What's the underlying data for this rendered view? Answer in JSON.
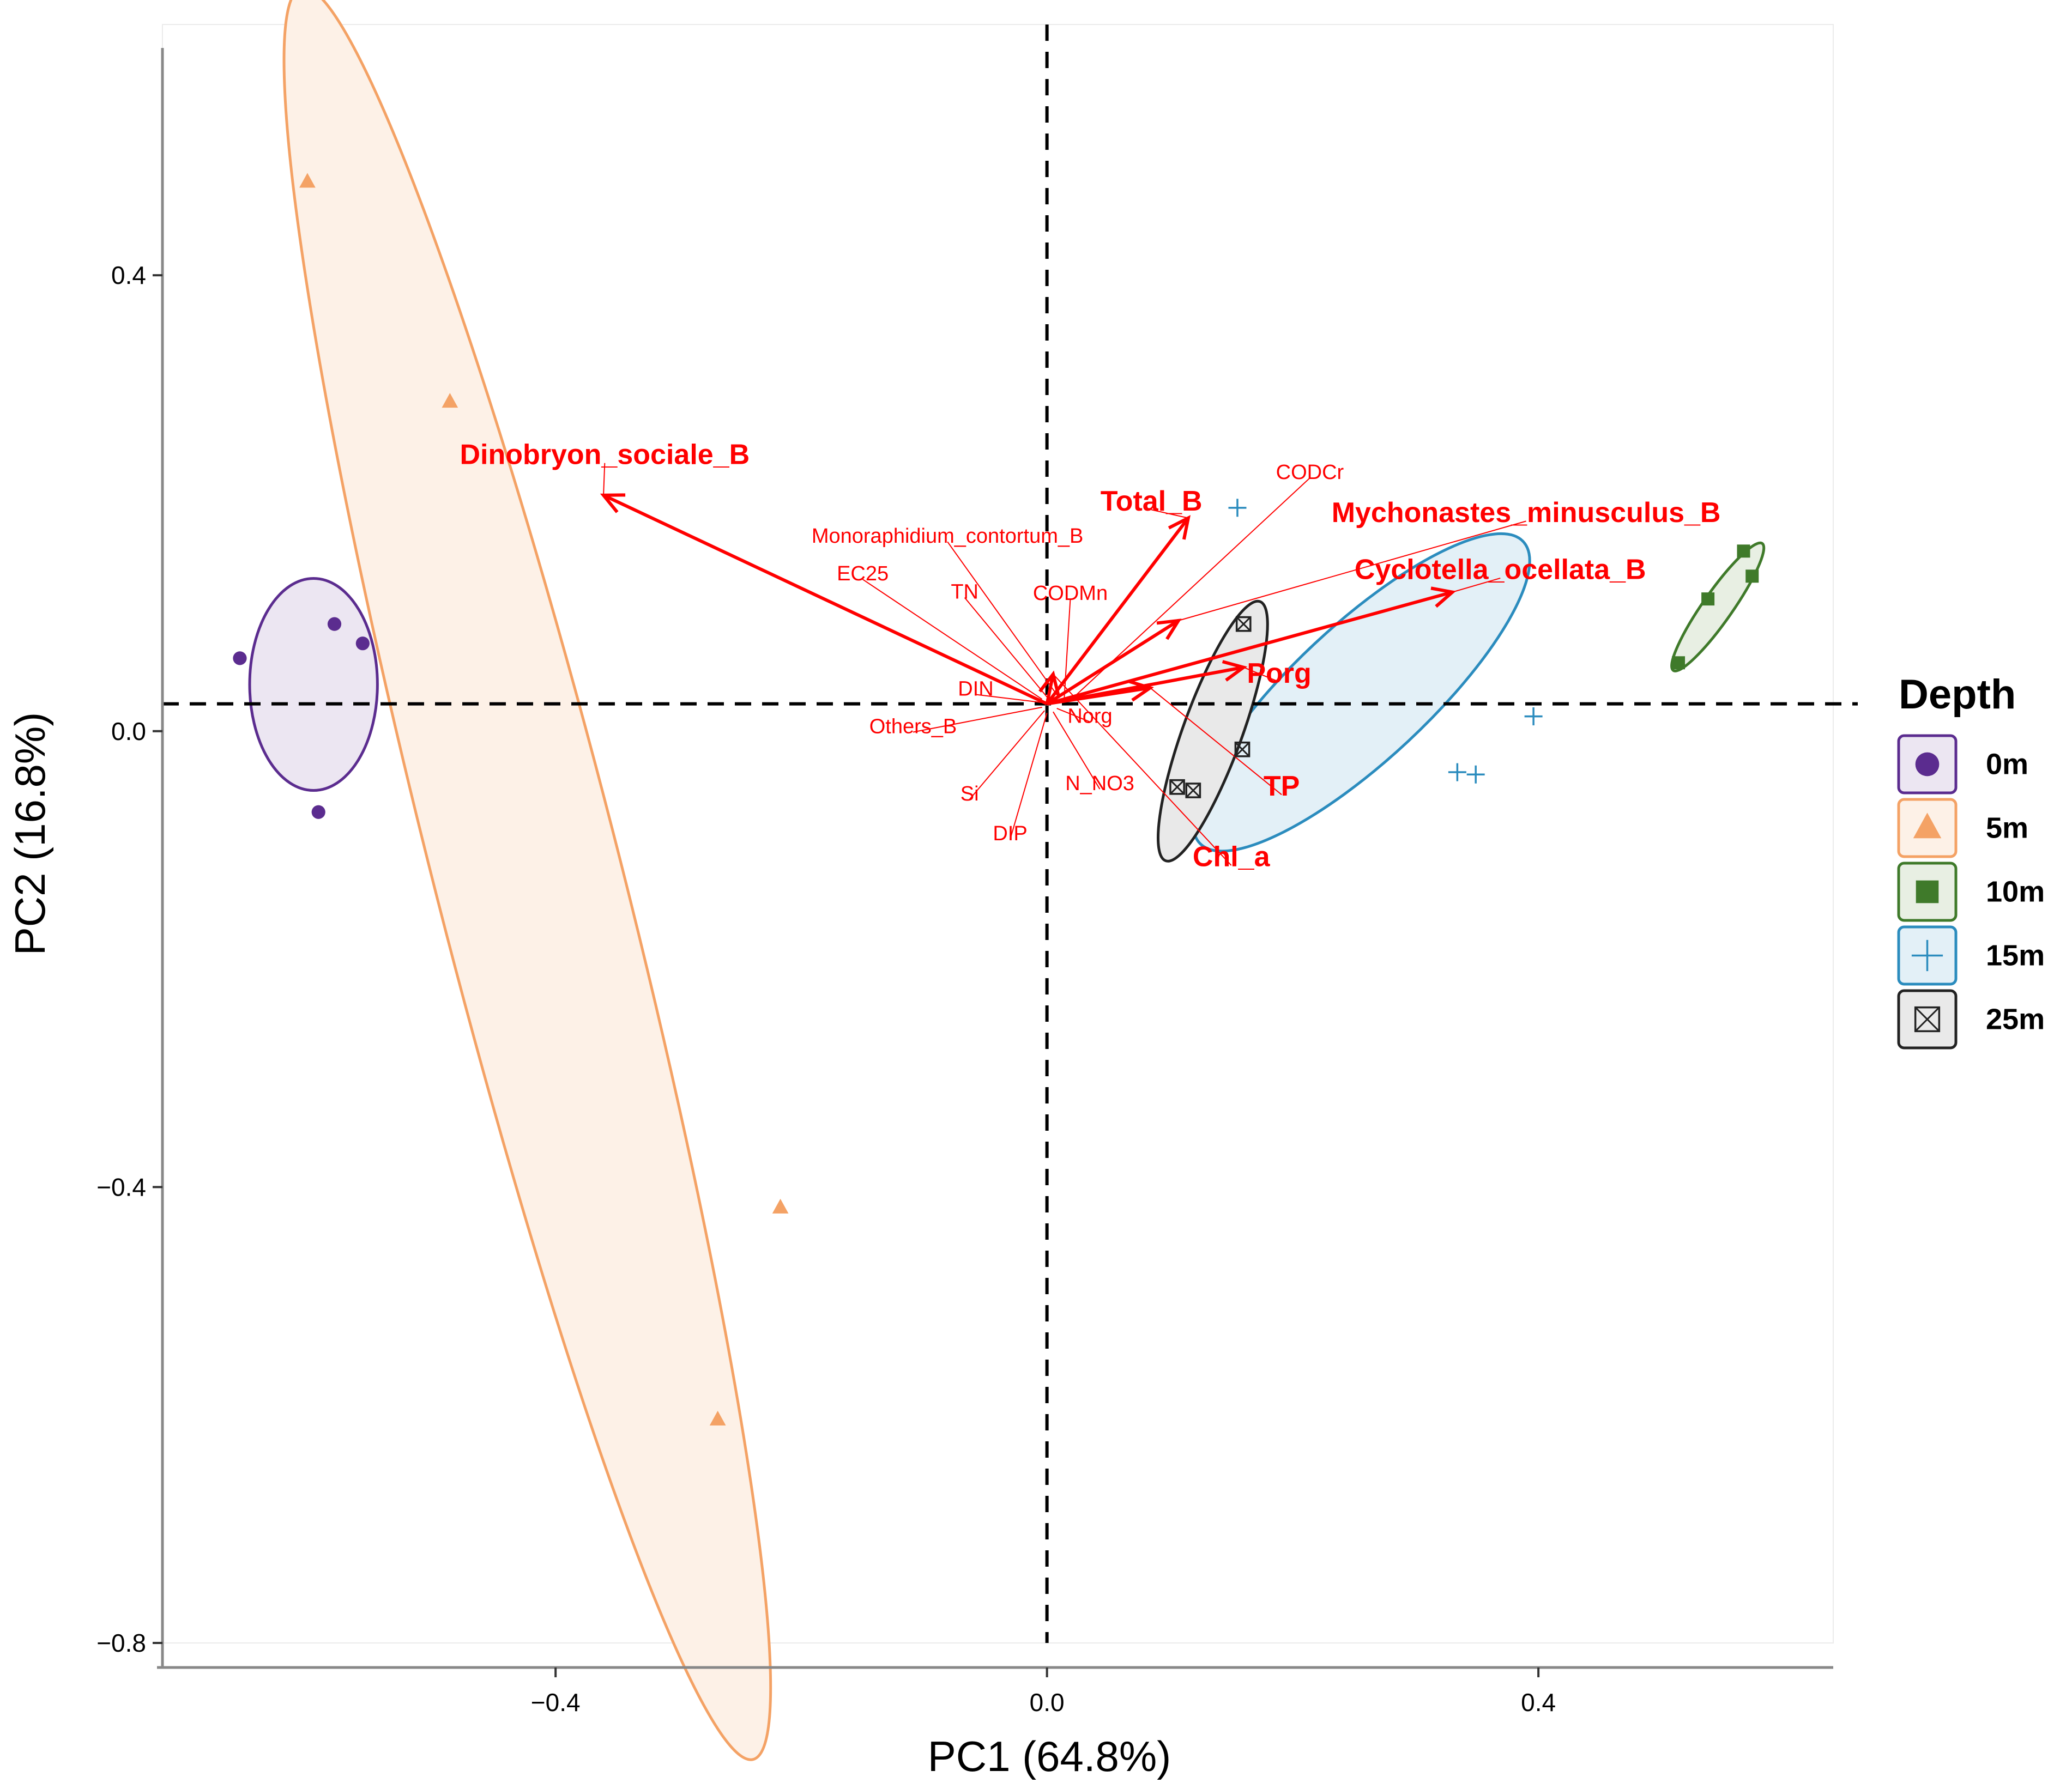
{
  "chart_data": {
    "type": "scatter",
    "subtype": "pca-biplot",
    "title": "",
    "xlabel": "PC1 (64.8%)",
    "ylabel": "PC2 (16.8%)",
    "xlim": [
      -0.72,
      0.64
    ],
    "ylim": [
      -0.8,
      0.62
    ],
    "x_ticks": [
      -0.4,
      0.0,
      0.4
    ],
    "y_ticks": [
      0.4,
      0.0,
      -0.4,
      -0.8
    ],
    "x_tick_labels": [
      "−0.4",
      "0.0",
      "0.4"
    ],
    "y_tick_labels": [
      "0.4",
      "0.0",
      "−0.4",
      "−0.8"
    ],
    "reference_lines": {
      "vertical_x": 0.0,
      "horizontal_y": 0.024,
      "style": "dashed"
    },
    "grid": false,
    "legend": {
      "title": "Depth",
      "position": "right",
      "entries": [
        {
          "label": "0m",
          "shape": "circle",
          "color": "#5b2c8f"
        },
        {
          "label": "5m",
          "shape": "triangle",
          "color": "#f4a265"
        },
        {
          "label": "10m",
          "shape": "square",
          "color": "#3f7a2a"
        },
        {
          "label": "15m",
          "shape": "plus",
          "color": "#2b8cbe"
        },
        {
          "label": "25m",
          "shape": "boxed-x",
          "color": "#222222"
        }
      ]
    },
    "series": [
      {
        "name": "0m",
        "shape": "circle",
        "color": "#5b2c8f",
        "fill": "#ece6f2",
        "points": [
          [
            -0.657,
            0.064
          ],
          [
            -0.58,
            0.094
          ],
          [
            -0.557,
            0.077
          ],
          [
            -0.593,
            -0.071
          ]
        ],
        "ellipse": {
          "cx": -0.597,
          "cy": 0.041,
          "rx": 0.052,
          "ry": 0.093,
          "angle_deg": 0
        }
      },
      {
        "name": "5m",
        "shape": "triangle",
        "color": "#f4a265",
        "fill": "#fdf1e7",
        "points": [
          [
            -0.602,
            0.482
          ],
          [
            -0.486,
            0.289
          ],
          [
            -0.217,
            -0.418
          ],
          [
            -0.268,
            -0.604
          ]
        ],
        "ellipse": {
          "cx": -0.423,
          "cy": -0.125,
          "rx": 0.076,
          "ry": 0.802,
          "angle_deg": -14.3
        }
      },
      {
        "name": "10m",
        "shape": "square",
        "color": "#3f7a2a",
        "fill": "#e8efe3",
        "points": [
          [
            0.567,
            0.158
          ],
          [
            0.538,
            0.116
          ],
          [
            0.574,
            0.136
          ],
          [
            0.514,
            0.06
          ]
        ],
        "ellipse": {
          "cx": 0.546,
          "cy": 0.109,
          "rx": 0.012,
          "ry": 0.068,
          "angle_deg": 35
        }
      },
      {
        "name": "15m",
        "shape": "plus",
        "color": "#2b8cbe",
        "fill": "#e3f0f7",
        "points": [
          [
            0.155,
            0.196
          ],
          [
            0.396,
            0.013
          ],
          [
            0.334,
            -0.036
          ],
          [
            0.349,
            -0.038
          ]
        ],
        "ellipse": {
          "cx": 0.256,
          "cy": 0.034,
          "rx": 0.055,
          "ry": 0.194,
          "angle_deg": 47
        }
      },
      {
        "name": "25m",
        "shape": "boxed-x",
        "color": "#222222",
        "fill": "#e9e9e9",
        "points": [
          [
            0.16,
            0.094
          ],
          [
            0.159,
            -0.016
          ],
          [
            0.106,
            -0.049
          ],
          [
            0.119,
            -0.052
          ]
        ],
        "ellipse": {
          "cx": 0.135,
          "cy": 0.0,
          "rx": 0.024,
          "ry": 0.121,
          "angle_deg": 20
        }
      }
    ],
    "loadings": [
      {
        "label": "Dinobryon_sociale_B",
        "x": -0.361,
        "y": 0.207,
        "bold": true,
        "arrowhead": true
      },
      {
        "label": "Total_B",
        "x": 0.115,
        "y": 0.187,
        "bold": true,
        "arrowhead": true
      },
      {
        "label": "Mychonastes_minusculus_B",
        "x": 0.107,
        "y": 0.097,
        "bold": true,
        "arrowhead": true
      },
      {
        "label": "Cyclotella_ocellata_B",
        "x": 0.33,
        "y": 0.122,
        "bold": true,
        "arrowhead": true
      },
      {
        "label": "Porg",
        "x": 0.16,
        "y": 0.056,
        "bold": true,
        "arrowhead": true
      },
      {
        "label": "TP",
        "x": 0.084,
        "y": 0.038,
        "bold": true,
        "arrowhead": true
      },
      {
        "label": "Chl_a",
        "x": 0.005,
        "y": 0.05,
        "bold": true,
        "arrowhead": true
      },
      {
        "label": "CODCr",
        "x": 0.022,
        "y": 0.03,
        "bold": false,
        "arrowhead": false
      },
      {
        "label": "Monoraphidium_contortum_B",
        "x": 0.01,
        "y": 0.029,
        "bold": false,
        "arrowhead": false
      },
      {
        "label": "EC25",
        "x": -0.004,
        "y": 0.028,
        "bold": false,
        "arrowhead": false
      },
      {
        "label": "TN",
        "x": 0.0,
        "y": 0.03,
        "bold": false,
        "arrowhead": false
      },
      {
        "label": "CODMn",
        "x": 0.014,
        "y": 0.028,
        "bold": false,
        "arrowhead": false
      },
      {
        "label": "DIN",
        "x": -0.003,
        "y": 0.025,
        "bold": false,
        "arrowhead": false
      },
      {
        "label": "Others_B",
        "x": -0.004,
        "y": 0.021,
        "bold": false,
        "arrowhead": false
      },
      {
        "label": "Norg",
        "x": 0.008,
        "y": 0.02,
        "bold": false,
        "arrowhead": false
      },
      {
        "label": "Si",
        "x": -0.002,
        "y": 0.018,
        "bold": false,
        "arrowhead": false
      },
      {
        "label": "N_NO3",
        "x": 0.005,
        "y": 0.017,
        "bold": false,
        "arrowhead": false
      },
      {
        "label": "DIP",
        "x": 0.0,
        "y": 0.016,
        "bold": false,
        "arrowhead": false
      }
    ],
    "loading_origin": [
      0.0,
      0.024
    ],
    "loading_color": "#ff0000"
  }
}
